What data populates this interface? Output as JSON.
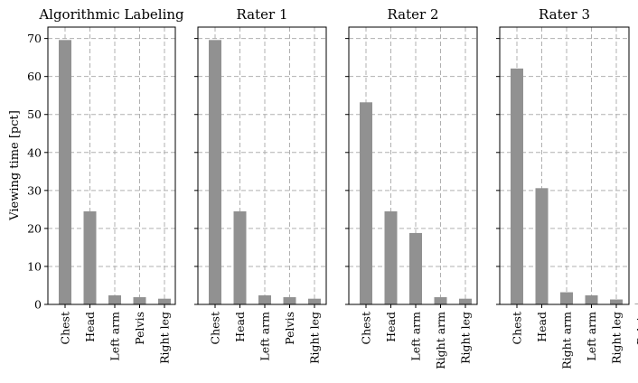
{
  "figure": {
    "ylabel": "Viewing time [pct]",
    "ylim": [
      0,
      73
    ],
    "yticks": [
      0,
      10,
      20,
      30,
      40,
      50,
      60,
      70
    ],
    "bar_color": "#919191",
    "grid_color": "#b0b0b0"
  },
  "chart_data": [
    {
      "type": "bar",
      "title": "Algorithmic Labeling",
      "categories": [
        "Chest",
        "Head",
        "Left arm",
        "Pelvis",
        "Right leg"
      ],
      "values": [
        69.6,
        24.5,
        2.4,
        1.9,
        1.5
      ],
      "ylabel": "Viewing time [pct]",
      "ylim": [
        0,
        73
      ],
      "grid": true
    },
    {
      "type": "bar",
      "title": "Rater 1",
      "categories": [
        "Chest",
        "Head",
        "Left arm",
        "Pelvis",
        "Right leg"
      ],
      "values": [
        69.6,
        24.5,
        2.4,
        1.9,
        1.5
      ],
      "ylim": [
        0,
        73
      ],
      "grid": true
    },
    {
      "type": "bar",
      "title": "Rater 2",
      "categories": [
        "Chest",
        "Head",
        "Left arm",
        "Right arm",
        "Right leg"
      ],
      "values": [
        53.2,
        24.5,
        18.8,
        1.9,
        1.5
      ],
      "ylim": [
        0,
        73
      ],
      "grid": true
    },
    {
      "type": "bar",
      "title": "Rater 3",
      "categories": [
        "Chest",
        "Head",
        "Right arm",
        "Left arm",
        "Right leg",
        "Pelvis"
      ],
      "values": [
        62.1,
        30.6,
        3.2,
        2.4,
        1.3,
        0.2
      ],
      "ylim": [
        0,
        73
      ],
      "grid": true
    }
  ]
}
